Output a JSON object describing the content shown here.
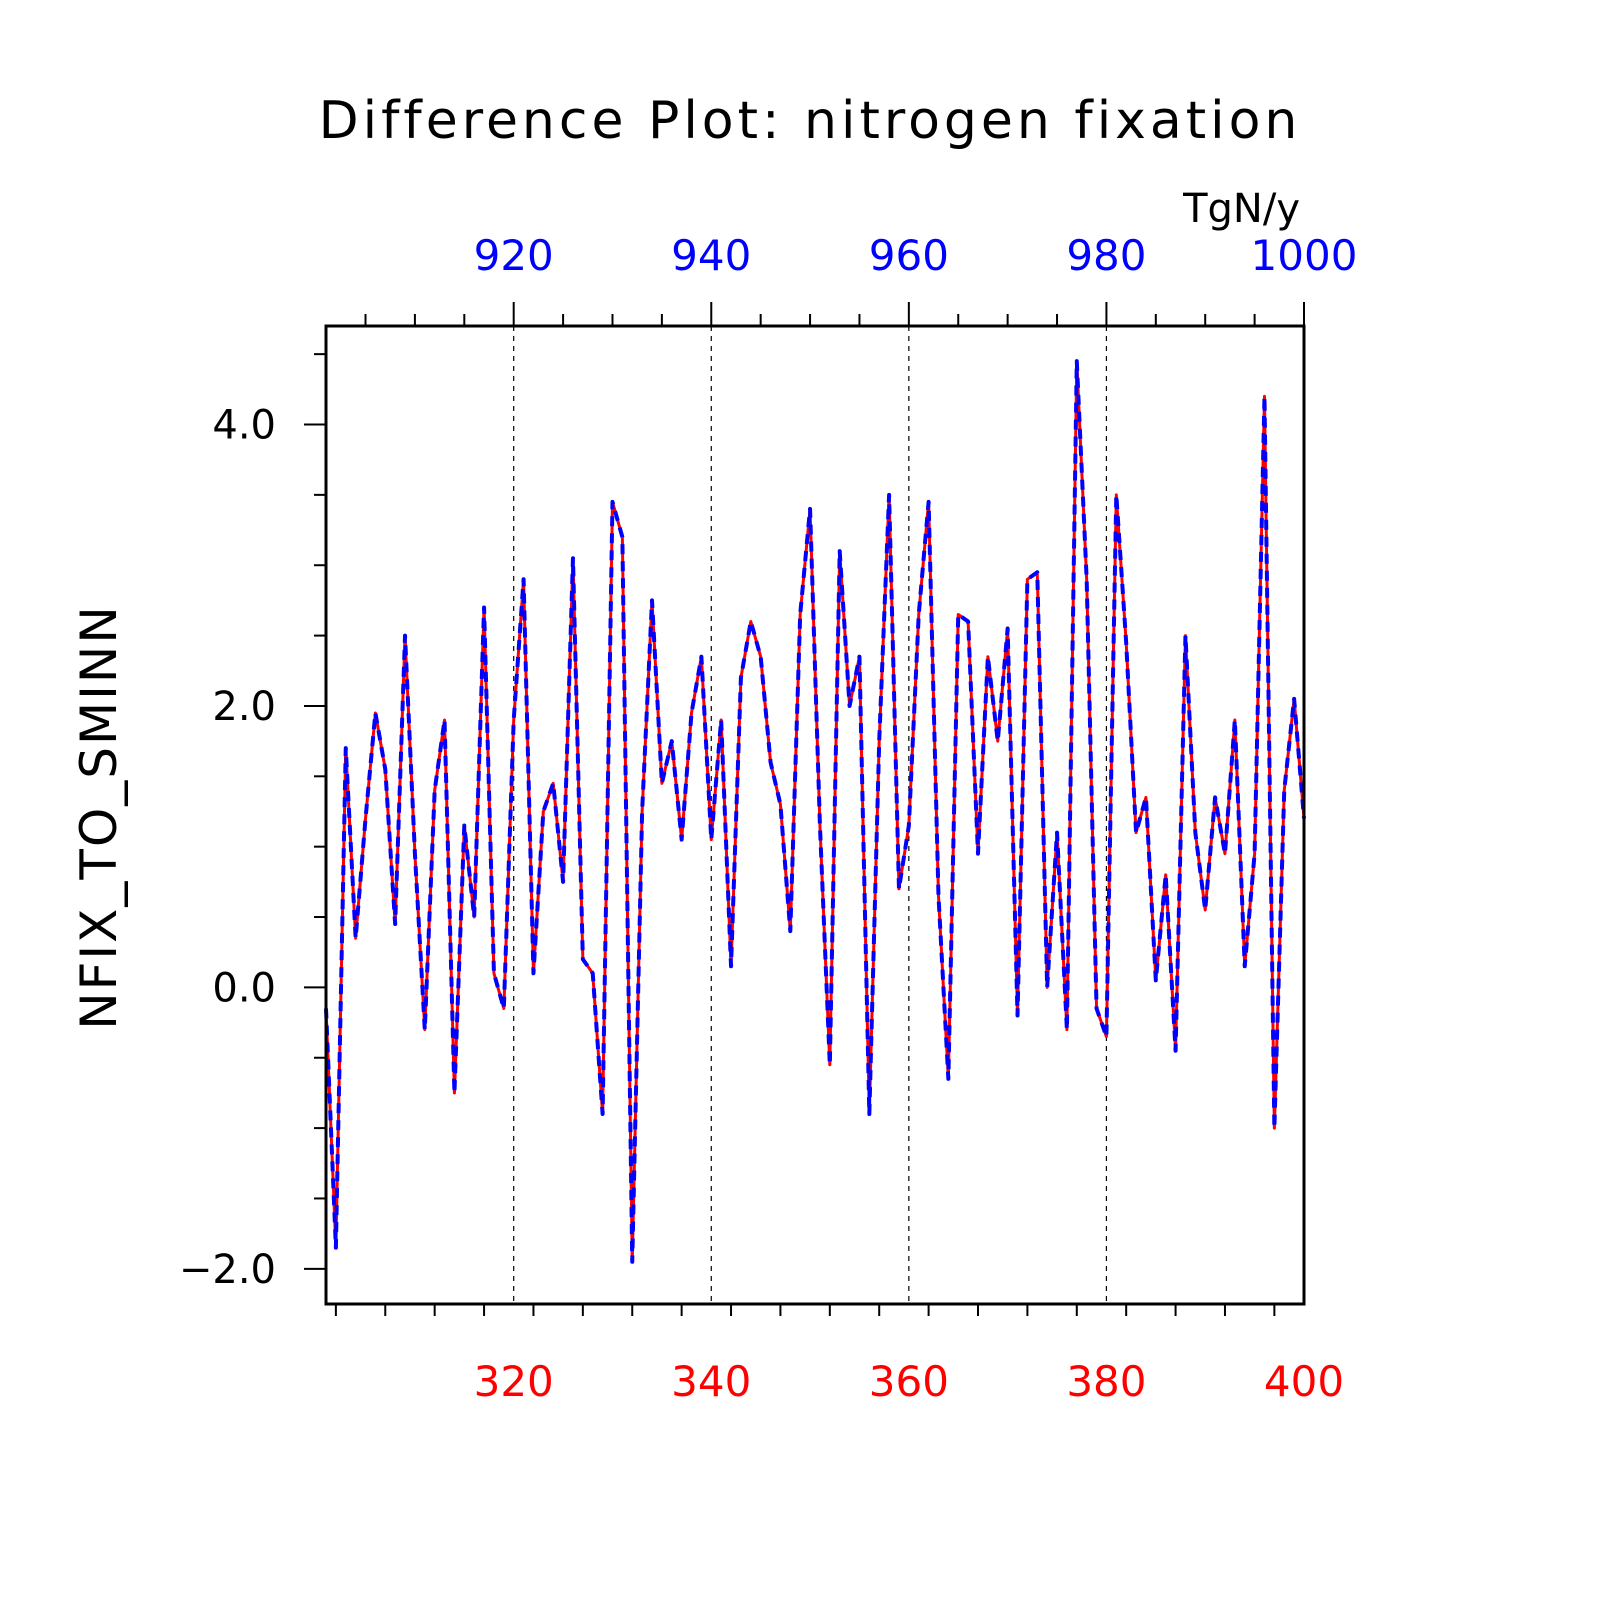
{
  "chart_data": {
    "type": "line",
    "title": "Difference Plot: nitrogen fixation",
    "units": "TgN/y",
    "ylabel": "NFIX_TO_SMINN",
    "ylim": [
      -2.25,
      4.7
    ],
    "yticks": [
      -2.0,
      0.0,
      2.0,
      4.0
    ],
    "ytick_labels": [
      "−2.0",
      "0.0",
      "2.0",
      "4.0"
    ],
    "grid": "dashed vertical lines at major x ticks",
    "x_bottom": {
      "range": [
        301,
        400
      ],
      "ticks": [
        320,
        340,
        360,
        380,
        400
      ],
      "tick_labels": [
        "320",
        "340",
        "360",
        "380",
        "400"
      ],
      "color": "#ff0000"
    },
    "x_top": {
      "range": [
        901,
        1000
      ],
      "ticks": [
        920,
        940,
        960,
        980,
        1000
      ],
      "tick_labels": [
        "920",
        "940",
        "960",
        "980",
        "1000"
      ],
      "color": "#0000ff"
    },
    "series": [
      {
        "axis": "bottom",
        "color": "#ff0000",
        "style": "solid",
        "x_start": 301,
        "values": [
          -0.15,
          -1.85,
          1.7,
          0.35,
          1.2,
          1.95,
          1.55,
          0.45,
          2.5,
          0.95,
          -0.3,
          1.4,
          1.9,
          -0.75,
          1.15,
          0.5,
          2.7,
          0.1,
          -0.15,
          1.9,
          2.9,
          0.1,
          1.25,
          1.45,
          0.75,
          3.05,
          0.2,
          0.1,
          -0.9,
          3.45,
          3.2,
          -1.95,
          1.25,
          2.75,
          1.45,
          1.75,
          1.05,
          1.95,
          2.35,
          1.05,
          1.9,
          0.15,
          2.2,
          2.6,
          2.35,
          1.6,
          1.3,
          0.4,
          2.65,
          3.4,
          1.15,
          -0.55,
          3.1,
          2.0,
          2.35,
          -0.9,
          1.75,
          3.5,
          0.7,
          1.15,
          2.65,
          3.45,
          0.65,
          -0.65,
          2.65,
          2.6,
          0.95,
          2.35,
          1.75,
          2.55,
          -0.2,
          2.9,
          2.95,
          0.0,
          1.1,
          -0.3,
          4.45,
          2.9,
          -0.15,
          -0.35,
          3.5,
          2.45,
          1.1,
          1.35,
          0.05,
          0.8,
          -0.45,
          2.5,
          1.1,
          0.55,
          1.35,
          0.95,
          1.9,
          0.15,
          0.95,
          4.2,
          -1.0,
          1.4,
          2.05,
          1.2
        ]
      },
      {
        "axis": "top",
        "color": "#0000ff",
        "style": "dashed",
        "x_start": 901,
        "values": [
          -0.15,
          -1.85,
          1.7,
          0.35,
          1.2,
          1.95,
          1.55,
          0.45,
          2.5,
          0.95,
          -0.3,
          1.4,
          1.9,
          -0.75,
          1.15,
          0.5,
          2.7,
          0.1,
          -0.15,
          1.9,
          2.9,
          0.1,
          1.25,
          1.45,
          0.75,
          3.05,
          0.2,
          0.1,
          -0.9,
          3.45,
          3.2,
          -1.95,
          1.25,
          2.75,
          1.45,
          1.75,
          1.05,
          1.95,
          2.35,
          1.05,
          1.9,
          0.15,
          2.2,
          2.6,
          2.35,
          1.6,
          1.3,
          0.4,
          2.65,
          3.4,
          1.15,
          -0.55,
          3.1,
          2.0,
          2.35,
          -0.9,
          1.75,
          3.5,
          0.7,
          1.15,
          2.65,
          3.45,
          0.65,
          -0.65,
          2.65,
          2.6,
          0.95,
          2.35,
          1.75,
          2.55,
          -0.2,
          2.9,
          2.95,
          0.0,
          1.1,
          -0.3,
          4.45,
          2.9,
          -0.15,
          -0.35,
          3.5,
          2.45,
          1.1,
          1.35,
          0.05,
          0.8,
          -0.45,
          2.5,
          1.1,
          0.55,
          1.35,
          0.95,
          1.9,
          0.15,
          0.95,
          4.2,
          -1.0,
          1.4,
          2.05,
          1.2
        ]
      }
    ]
  }
}
